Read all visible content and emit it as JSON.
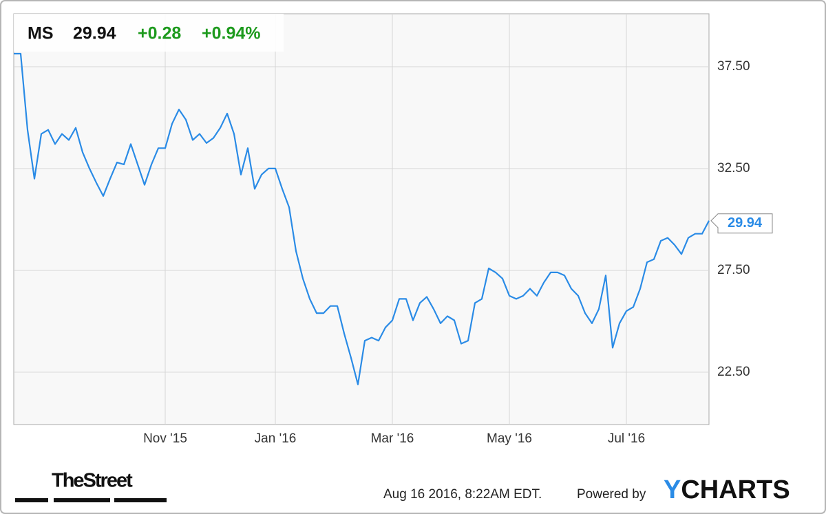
{
  "chart_data": {
    "type": "line",
    "header": {
      "ticker": "MS",
      "price": 29.94,
      "change": "+0.28",
      "change_pct": "+0.94%"
    },
    "categories": [
      null,
      null,
      null,
      null,
      null,
      null,
      null,
      null,
      null,
      null,
      null,
      null,
      null,
      null,
      null,
      null,
      null,
      null,
      null,
      null,
      null,
      null,
      "Nov '15",
      null,
      null,
      null,
      null,
      null,
      null,
      null,
      null,
      null,
      null,
      null,
      null,
      null,
      null,
      null,
      "Jan '16",
      null,
      null,
      null,
      null,
      null,
      null,
      null,
      null,
      null,
      null,
      null,
      null,
      null,
      null,
      null,
      null,
      "Mar '16",
      null,
      null,
      null,
      null,
      null,
      null,
      null,
      null,
      null,
      null,
      null,
      null,
      null,
      null,
      null,
      null,
      "May '16",
      null,
      null,
      null,
      null,
      null,
      null,
      null,
      null,
      null,
      null,
      null,
      null,
      null,
      null,
      null,
      null,
      "Jul '16",
      null,
      null,
      null,
      null,
      null,
      null,
      null,
      null,
      null,
      null,
      null,
      null
    ],
    "series": [
      {
        "name": "MS",
        "color": "#2a8be6",
        "values": [
          38.14,
          38.14,
          34.4,
          32.0,
          34.2,
          34.4,
          33.7,
          34.2,
          33.9,
          34.5,
          33.3,
          32.5,
          31.8,
          31.15,
          32.0,
          32.8,
          32.7,
          33.7,
          32.7,
          31.7,
          32.7,
          33.5,
          33.5,
          34.7,
          35.4,
          34.9,
          33.9,
          34.2,
          33.75,
          34.0,
          34.5,
          35.2,
          34.2,
          32.2,
          33.5,
          31.5,
          32.2,
          32.5,
          32.5,
          31.5,
          30.6,
          28.45,
          27.1,
          26.1,
          25.4,
          25.4,
          25.75,
          25.75,
          24.4,
          23.2,
          21.9,
          24.05,
          24.2,
          24.05,
          24.7,
          25.05,
          26.1,
          26.1,
          25.05,
          25.9,
          26.2,
          25.6,
          24.9,
          25.25,
          25.05,
          23.9,
          24.05,
          25.9,
          26.1,
          27.6,
          27.4,
          27.1,
          26.25,
          26.1,
          26.25,
          26.6,
          26.25,
          26.9,
          27.4,
          27.4,
          27.25,
          26.6,
          26.25,
          25.4,
          24.9,
          25.6,
          27.25,
          23.7,
          24.9,
          25.5,
          25.7,
          26.6,
          27.9,
          28.05,
          28.95,
          29.1,
          28.75,
          28.3,
          29.1,
          29.3,
          29.3,
          29.94
        ]
      }
    ],
    "ylim": [
      19.93,
      40.1
    ],
    "yticks": [
      {
        "value": 22.5,
        "label": "22.50"
      },
      {
        "value": 27.5,
        "label": "27.50"
      },
      {
        "value": 32.5,
        "label": "32.50"
      },
      {
        "value": 37.5,
        "label": "37.50"
      }
    ],
    "grid": true,
    "footer": {
      "timestamp": "Aug 16 2016, 8:22AM EDT.",
      "powered_by": "Powered by",
      "logo_y": "Y",
      "logo_rest": "CHARTS",
      "source_logo": "TheStreet"
    }
  }
}
